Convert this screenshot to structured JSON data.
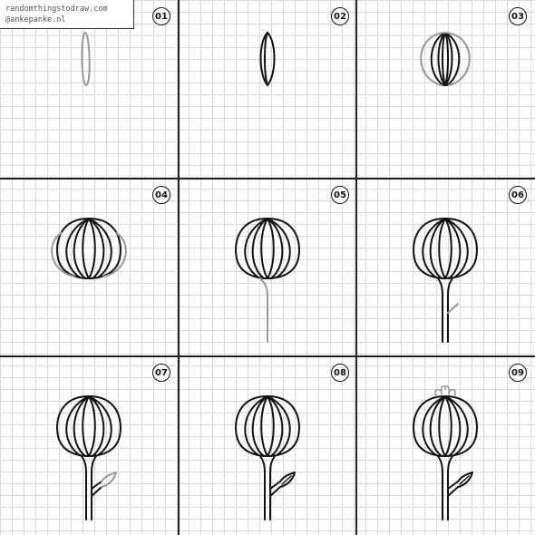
{
  "credit": {
    "line1": "randomthingstodraw.com",
    "line2": "@ankepanke.nl"
  },
  "steps": [
    {
      "label": "01"
    },
    {
      "label": "02"
    },
    {
      "label": "03"
    },
    {
      "label": "04"
    },
    {
      "label": "05"
    },
    {
      "label": "06"
    },
    {
      "label": "07"
    },
    {
      "label": "08"
    },
    {
      "label": "09"
    }
  ],
  "colors": {
    "ink": "#111111",
    "new_stroke": "#999999",
    "grid": "#d9d9d9"
  }
}
